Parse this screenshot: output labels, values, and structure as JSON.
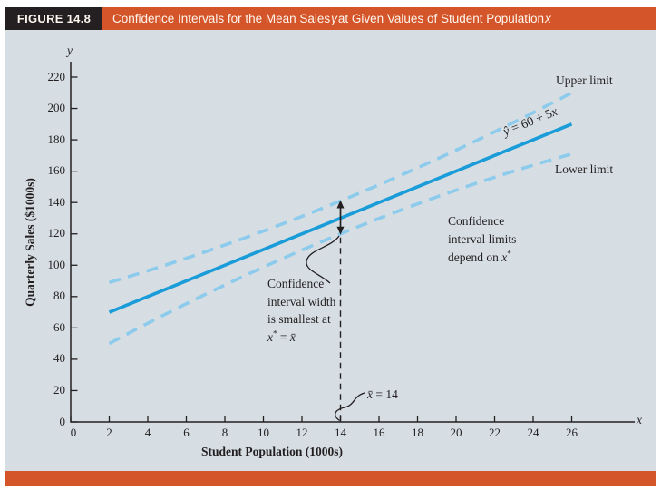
{
  "header": {
    "figure_label": "FIGURE 14.8",
    "title_1": "Confidence Intervals for the Mean Sales ",
    "title_var1": "y",
    "title_2": " at Given Values of Student Population ",
    "title_var2": "x"
  },
  "colors": {
    "accent_orange": "#d5552a",
    "header_dark": "#241f20",
    "header_text": "#fdf6ee",
    "plot_background": "#d6dee4",
    "regression_blue": "#199cd8",
    "band_blue": "#8dcbec",
    "ink": "#231f20"
  },
  "chart_data": {
    "type": "line",
    "xlabel": "Student Population (1000s)",
    "ylabel": "Quarterly Sales ($1000s)",
    "x_axis_letter": "x",
    "y_axis_letter": "y",
    "xlim": [
      0,
      28
    ],
    "ylim": [
      0,
      230
    ],
    "grid": "off",
    "xticks": [
      0,
      2,
      4,
      6,
      8,
      10,
      12,
      14,
      16,
      18,
      20,
      22,
      24,
      26
    ],
    "yticks": [
      0,
      20,
      40,
      60,
      80,
      100,
      120,
      140,
      160,
      180,
      200,
      220
    ],
    "x_mean": 14,
    "series": [
      {
        "name": "estimated-regression-line",
        "style": "solid",
        "label_var1": "ŷ",
        "label_mid": " = 60 + 5",
        "label_var2": "x",
        "x": [
          2,
          26
        ],
        "y": [
          70,
          190
        ]
      },
      {
        "name": "upper-confidence-limit",
        "style": "dashed",
        "label": "Upper limit",
        "x": [
          2,
          14,
          26
        ],
        "y": [
          89,
          141,
          210
        ]
      },
      {
        "name": "lower-confidence-limit",
        "style": "dashed",
        "label": "Lower limit",
        "x": [
          2,
          14,
          26
        ],
        "y": [
          50,
          120,
          171
        ]
      }
    ],
    "annotations": {
      "depend_note": {
        "line1": "Confidence",
        "line2": "interval limits",
        "line3_prefix": "depend on ",
        "var": "x",
        "sup": "*"
      },
      "width_note": {
        "line1": "Confidence",
        "line2": "interval width",
        "line3": "is smallest at",
        "var1": "x",
        "sup": "*",
        "mid": " = ",
        "var2": "x̄"
      },
      "mean_note": {
        "var": "x̄",
        "rest": " = 14"
      }
    }
  }
}
